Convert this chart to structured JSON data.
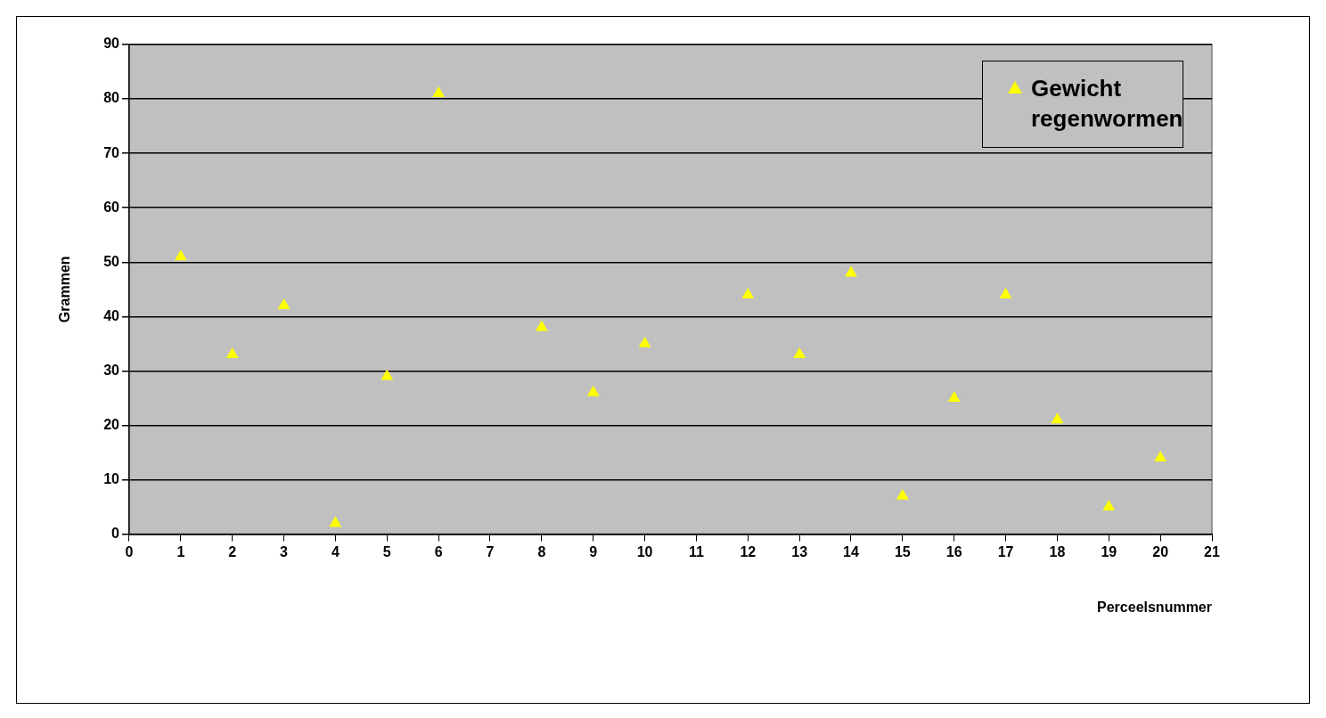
{
  "chart_data": {
    "type": "scatter",
    "xlabel": "Perceelsnummer",
    "ylabel": "Grammen",
    "x": [
      1,
      2,
      3,
      4,
      5,
      6,
      8,
      9,
      10,
      12,
      13,
      14,
      15,
      16,
      17,
      18,
      19,
      20
    ],
    "series": [
      {
        "name": "Gewicht regenwormen",
        "color": "#ffff00",
        "values": [
          51,
          33,
          42,
          2,
          29,
          81,
          38,
          26,
          35,
          44,
          33,
          48,
          7,
          25,
          44,
          21,
          5,
          14
        ]
      }
    ],
    "xlim": [
      0,
      21
    ],
    "xticks": [
      0,
      1,
      2,
      3,
      4,
      5,
      6,
      7,
      8,
      9,
      10,
      11,
      12,
      13,
      14,
      15,
      16,
      17,
      18,
      19,
      20,
      21
    ],
    "ylim": [
      0,
      90
    ],
    "yticks": [
      0,
      10,
      20,
      30,
      40,
      50,
      60,
      70,
      80,
      90
    ],
    "grid": "y",
    "legend": "top right",
    "marker": "triangle"
  }
}
